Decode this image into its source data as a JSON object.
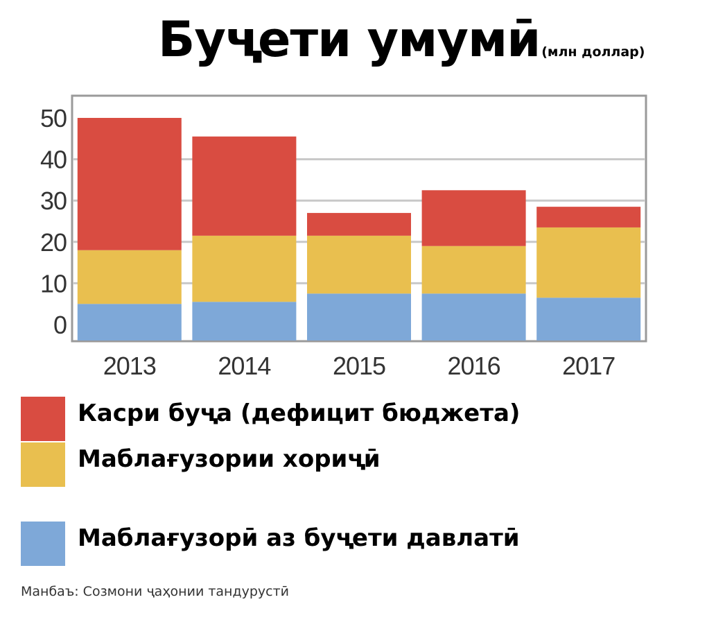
{
  "chart_data": {
    "type": "bar",
    "stacked": true,
    "title": "Буҷети умумӣ",
    "unit": "(млн доллар)",
    "categories": [
      "2013",
      "2014",
      "2015",
      "2016",
      "2017"
    ],
    "series": [
      {
        "name": "Маблағузорӣ аз буҷети давлатӣ",
        "color": "#7ea8d8",
        "values": [
          5,
          5.5,
          7.5,
          7.5,
          6.5
        ]
      },
      {
        "name": "Маблағузории хориҷӣ",
        "color": "#e9bf4f",
        "values": [
          13,
          16,
          14,
          11.5,
          17
        ]
      },
      {
        "name": "Касри буҷа (дефицит бюджета)",
        "color": "#d94c41",
        "values": [
          32,
          24,
          5.5,
          13.5,
          5
        ]
      }
    ],
    "yticks": [
      "0",
      "10",
      "20",
      "30",
      "40",
      "50"
    ],
    "ylim": [
      0,
      50
    ],
    "grid": true,
    "legend_position": "bottom",
    "source": "Манбаъ: Созмони ҷаҳонии тандурустӣ"
  }
}
